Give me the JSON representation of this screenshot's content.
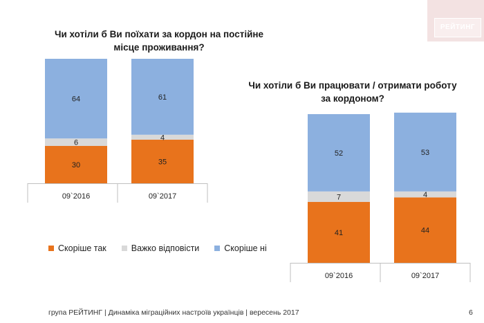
{
  "logo": {
    "text": "РЕЙТИНГ"
  },
  "colors": {
    "yes": "#e8731c",
    "hard": "#d9d9d9",
    "no": "#8cb0df",
    "axis": "#bfbfbf"
  },
  "legend": [
    {
      "key": "yes",
      "label": "Скоріше так"
    },
    {
      "key": "hard",
      "label": "Важко відповісти"
    },
    {
      "key": "no",
      "label": "Скоріше ні"
    }
  ],
  "chart_data": [
    {
      "type": "bar",
      "stacked": true,
      "title_lines": [
        "Чи хотіли б Ви поїхати за кордон на постійне",
        "місце проживання?"
      ],
      "categories": [
        "09`2016",
        "09`2017"
      ],
      "series": [
        {
          "name": "Скоріше так",
          "values": [
            30,
            35
          ]
        },
        {
          "name": "Важко відповісти",
          "values": [
            6,
            4
          ]
        },
        {
          "name": "Скоріше ні",
          "values": [
            64,
            61
          ]
        }
      ],
      "ylim": [
        0,
        100
      ]
    },
    {
      "type": "bar",
      "stacked": true,
      "title_lines": [
        "Чи хотіли б Ви працювати / отримати роботу",
        "за кордоном?"
      ],
      "categories": [
        "09`2016",
        "09`2017"
      ],
      "series": [
        {
          "name": "Скоріше так",
          "values": [
            41,
            44
          ]
        },
        {
          "name": "Важко відповісти",
          "values": [
            7,
            4
          ]
        },
        {
          "name": "Скоріше ні",
          "values": [
            52,
            53
          ]
        }
      ],
      "ylim": [
        0,
        100
      ]
    }
  ],
  "footer": {
    "text": "група РЕЙТИНГ  | Динаміка міграційних настроїв українців  |  вересень 2017",
    "page": "6"
  }
}
